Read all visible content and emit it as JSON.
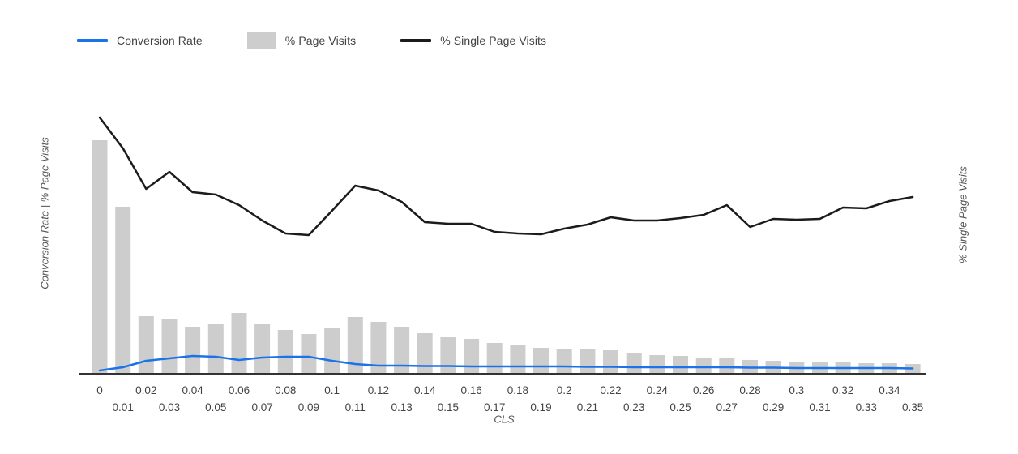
{
  "legend": {
    "items": [
      {
        "label": "Conversion Rate",
        "color": "#1a73e8",
        "swatch": "line"
      },
      {
        "label": "% Page Visits",
        "color": "#cdcdcd",
        "swatch": "box"
      },
      {
        "label": "% Single Page Visits",
        "color": "#1b1b1b",
        "swatch": "line"
      }
    ]
  },
  "axes": {
    "x_title": "CLS",
    "y_left_title": "Conversion Rate | % Page Visits",
    "y_right_title": "% Single Page Visits"
  },
  "chart_data": {
    "type": "combo",
    "title": "",
    "xlabel": "CLS",
    "ylabel_left": "Conversion Rate | % Page Visits",
    "ylabel_right": "% Single Page Visits",
    "grid": false,
    "legend_position": "top-left",
    "y_axis_tick_labels_shown": false,
    "value_units": "relative height units (no numeric y ticks shown in chart); 342 = full plot height",
    "ylim": [
      0,
      342
    ],
    "categories": [
      "0",
      "0.01",
      "0.02",
      "0.03",
      "0.04",
      "0.05",
      "0.06",
      "0.07",
      "0.08",
      "0.09",
      "0.1",
      "0.11",
      "0.12",
      "0.13",
      "0.14",
      "0.15",
      "0.16",
      "0.17",
      "0.18",
      "0.19",
      "0.2",
      "0.21",
      "0.22",
      "0.23",
      "0.24",
      "0.25",
      "0.26",
      "0.27",
      "0.28",
      "0.29",
      "0.3",
      "0.31",
      "0.32",
      "0.33",
      "0.34",
      "0.35"
    ],
    "series": [
      {
        "name": "Conversion Rate",
        "type": "line",
        "axis": "left",
        "color": "#1a73e8",
        "values": [
          5,
          9,
          17,
          20,
          23,
          22,
          18,
          21,
          22,
          22,
          17,
          13,
          11,
          11,
          10.5,
          10.5,
          10,
          10,
          10,
          10,
          10,
          9.5,
          9.5,
          9,
          9,
          9,
          9,
          9,
          8.5,
          8.5,
          8,
          8,
          8,
          8,
          8,
          7.5
        ]
      },
      {
        "name": "% Page Visits",
        "type": "bar",
        "axis": "left",
        "color": "#cdcdcd",
        "values": [
          289,
          207,
          72,
          68,
          59,
          62,
          76,
          62,
          55,
          50,
          58,
          71,
          65,
          59,
          51,
          46,
          44,
          39,
          36,
          33,
          32,
          31,
          30,
          26,
          24,
          23,
          21,
          21,
          18,
          17,
          15,
          15,
          15,
          14,
          14,
          13
        ]
      },
      {
        "name": "% Single Page Visits",
        "type": "line",
        "axis": "right",
        "color": "#1b1b1b",
        "values": [
          317,
          279,
          229,
          250,
          225,
          222,
          209,
          190,
          174,
          172,
          202,
          233,
          227,
          213,
          188,
          186,
          186,
          176,
          174,
          173,
          180,
          185,
          194,
          190,
          190,
          193,
          197,
          209,
          182,
          192,
          191,
          192,
          206,
          205,
          214,
          219
        ]
      }
    ]
  },
  "style": {
    "axis_line_color": "#333333",
    "tick_label_color": "#424242"
  }
}
